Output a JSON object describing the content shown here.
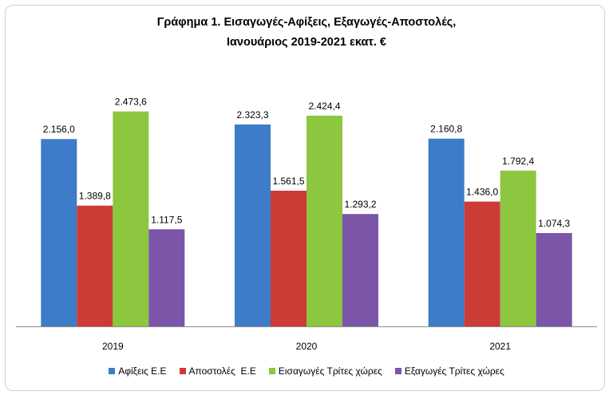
{
  "chart_data": {
    "type": "bar",
    "title_line1": "Γράφημα 1. Εισαγωγές-Αφίξεις, Εξαγωγές-Αποστολές,",
    "title_line2": "Ιανουάριος 2019-2021 εκατ. €",
    "categories": [
      "2019",
      "2020",
      "2021"
    ],
    "ylim": [
      0,
      2700
    ],
    "grid": false,
    "legend_position": "bottom",
    "series": [
      {
        "name": "Αφίξεις Ε.Ε",
        "color": "#3d7cc9",
        "values": [
          2156.0,
          2323.3,
          2160.8
        ],
        "labels": [
          "2.156,0",
          "2.323,3",
          "2.160,8"
        ]
      },
      {
        "name": "Αποστολές  Ε.Ε",
        "color": "#cc3b36",
        "values": [
          1389.8,
          1561.5,
          1436.0
        ],
        "labels": [
          "1.389,8",
          "1.561,5",
          "1.436,0"
        ]
      },
      {
        "name": "Εισαγωγές Τρίτες χώρες",
        "color": "#8dc63f",
        "values": [
          2473.6,
          2424.4,
          1792.4
        ],
        "labels": [
          "2.473,6",
          "2.424,4",
          "1.792,4"
        ]
      },
      {
        "name": "Εξαγωγές Τρίτες χώρες",
        "color": "#7b55a8",
        "values": [
          1117.5,
          1293.2,
          1074.3
        ],
        "labels": [
          "1.117,5",
          "1.293,2",
          "1.074,3"
        ]
      }
    ]
  }
}
